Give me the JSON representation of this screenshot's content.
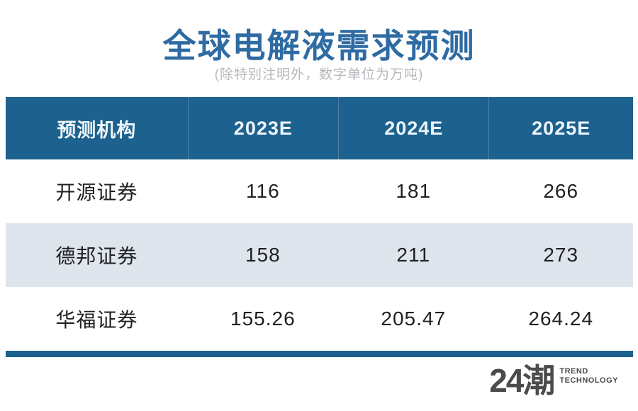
{
  "title": "全球电解液需求预测",
  "subtitle": "(除特别注明外，数字单位为万吨)",
  "table": {
    "headers": [
      "预测机构",
      "2023E",
      "2024E",
      "2025E"
    ],
    "rows": [
      {
        "cells": [
          "开源证券",
          "116",
          "181",
          "266"
        ]
      },
      {
        "cells": [
          "德邦证券",
          "158",
          "211",
          "273"
        ]
      },
      {
        "cells": [
          "华福证券",
          "155.26",
          "205.47",
          "264.24"
        ]
      }
    ]
  },
  "logo": {
    "brand": "24潮",
    "tagline_line1": "TREND",
    "tagline_line2": "TECHNOLOGY"
  },
  "colors": {
    "title_blue": "#2e6ba3",
    "header_bg": "#1d618e",
    "alt_row_bg": "#dfe5ed",
    "subtitle_gray": "#b4b8bc",
    "body_text": "#1f2023",
    "logo_gray": "#4b4b4e"
  },
  "chart_data": {
    "type": "table",
    "title": "全球电解液需求预测",
    "subtitle": "(除特别注明外，数字单位为万吨)",
    "columns": [
      "预测机构",
      "2023E",
      "2024E",
      "2025E"
    ],
    "rows": [
      [
        "开源证券",
        116,
        181,
        266
      ],
      [
        "德邦证券",
        158,
        211,
        273
      ],
      [
        "华福证券",
        155.26,
        205.47,
        264.24
      ]
    ]
  }
}
